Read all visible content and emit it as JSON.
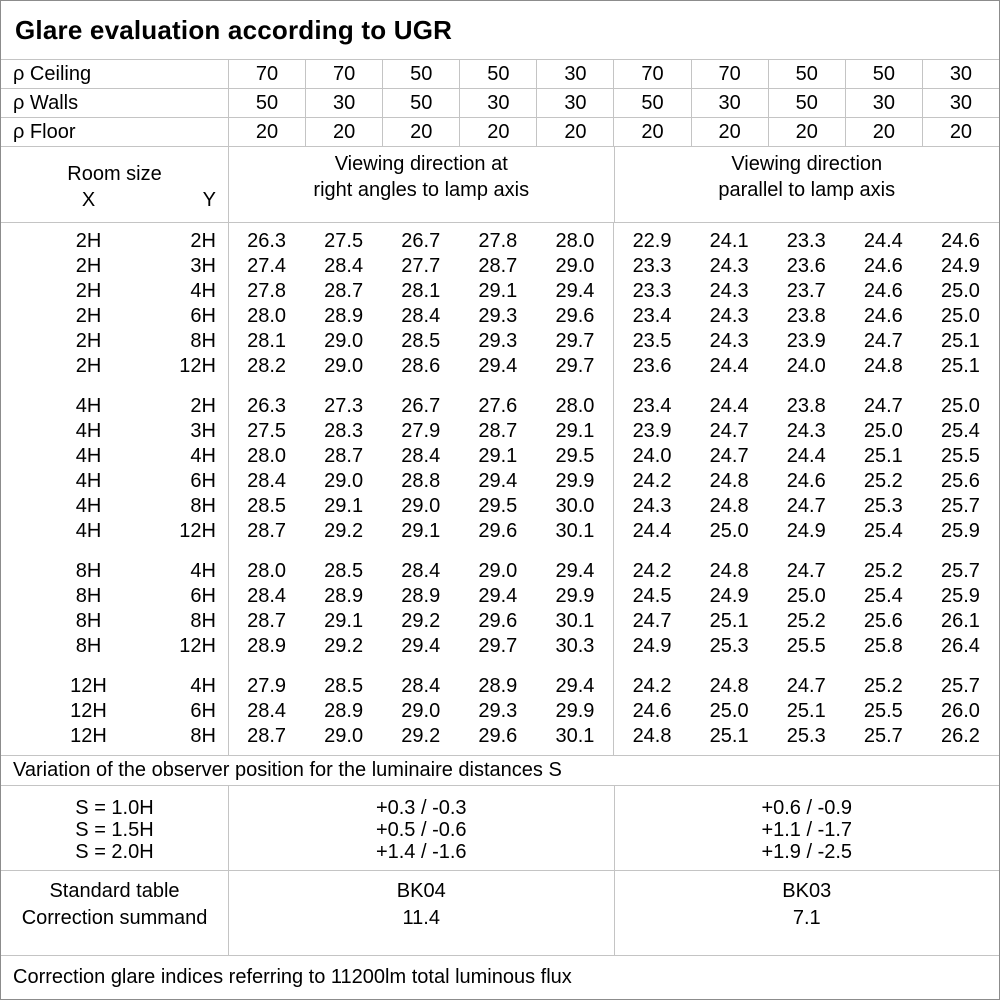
{
  "title": "Glare evaluation according to UGR",
  "reflectance": {
    "rows": [
      {
        "label": "ρ Ceiling",
        "values": [
          "70",
          "70",
          "50",
          "50",
          "30",
          "70",
          "70",
          "50",
          "50",
          "30"
        ]
      },
      {
        "label": "ρ Walls",
        "values": [
          "50",
          "30",
          "50",
          "30",
          "30",
          "50",
          "30",
          "50",
          "30",
          "30"
        ]
      },
      {
        "label": "ρ Floor",
        "values": [
          "20",
          "20",
          "20",
          "20",
          "20",
          "20",
          "20",
          "20",
          "20",
          "20"
        ]
      }
    ]
  },
  "room_size": {
    "title": "Room size",
    "x": "X",
    "y": "Y"
  },
  "viewing_groups": {
    "right_angles": "Viewing direction at\nright angles to lamp axis",
    "parallel": "Viewing direction\nparallel to lamp axis"
  },
  "blocks": [
    {
      "rows": [
        {
          "x": "2H",
          "y": "2H",
          "right": [
            "26.3",
            "27.5",
            "26.7",
            "27.8",
            "28.0"
          ],
          "parallel": [
            "22.9",
            "24.1",
            "23.3",
            "24.4",
            "24.6"
          ]
        },
        {
          "x": "2H",
          "y": "3H",
          "right": [
            "27.4",
            "28.4",
            "27.7",
            "28.7",
            "29.0"
          ],
          "parallel": [
            "23.3",
            "24.3",
            "23.6",
            "24.6",
            "24.9"
          ]
        },
        {
          "x": "2H",
          "y": "4H",
          "right": [
            "27.8",
            "28.7",
            "28.1",
            "29.1",
            "29.4"
          ],
          "parallel": [
            "23.3",
            "24.3",
            "23.7",
            "24.6",
            "25.0"
          ]
        },
        {
          "x": "2H",
          "y": "6H",
          "right": [
            "28.0",
            "28.9",
            "28.4",
            "29.3",
            "29.6"
          ],
          "parallel": [
            "23.4",
            "24.3",
            "23.8",
            "24.6",
            "25.0"
          ]
        },
        {
          "x": "2H",
          "y": "8H",
          "right": [
            "28.1",
            "29.0",
            "28.5",
            "29.3",
            "29.7"
          ],
          "parallel": [
            "23.5",
            "24.3",
            "23.9",
            "24.7",
            "25.1"
          ]
        },
        {
          "x": "2H",
          "y": "12H",
          "right": [
            "28.2",
            "29.0",
            "28.6",
            "29.4",
            "29.7"
          ],
          "parallel": [
            "23.6",
            "24.4",
            "24.0",
            "24.8",
            "25.1"
          ]
        }
      ]
    },
    {
      "rows": [
        {
          "x": "4H",
          "y": "2H",
          "right": [
            "26.3",
            "27.3",
            "26.7",
            "27.6",
            "28.0"
          ],
          "parallel": [
            "23.4",
            "24.4",
            "23.8",
            "24.7",
            "25.0"
          ]
        },
        {
          "x": "4H",
          "y": "3H",
          "right": [
            "27.5",
            "28.3",
            "27.9",
            "28.7",
            "29.1"
          ],
          "parallel": [
            "23.9",
            "24.7",
            "24.3",
            "25.0",
            "25.4"
          ]
        },
        {
          "x": "4H",
          "y": "4H",
          "right": [
            "28.0",
            "28.7",
            "28.4",
            "29.1",
            "29.5"
          ],
          "parallel": [
            "24.0",
            "24.7",
            "24.4",
            "25.1",
            "25.5"
          ]
        },
        {
          "x": "4H",
          "y": "6H",
          "right": [
            "28.4",
            "29.0",
            "28.8",
            "29.4",
            "29.9"
          ],
          "parallel": [
            "24.2",
            "24.8",
            "24.6",
            "25.2",
            "25.6"
          ]
        },
        {
          "x": "4H",
          "y": "8H",
          "right": [
            "28.5",
            "29.1",
            "29.0",
            "29.5",
            "30.0"
          ],
          "parallel": [
            "24.3",
            "24.8",
            "24.7",
            "25.3",
            "25.7"
          ]
        },
        {
          "x": "4H",
          "y": "12H",
          "right": [
            "28.7",
            "29.2",
            "29.1",
            "29.6",
            "30.1"
          ],
          "parallel": [
            "24.4",
            "25.0",
            "24.9",
            "25.4",
            "25.9"
          ]
        }
      ]
    },
    {
      "rows": [
        {
          "x": "8H",
          "y": "4H",
          "right": [
            "28.0",
            "28.5",
            "28.4",
            "29.0",
            "29.4"
          ],
          "parallel": [
            "24.2",
            "24.8",
            "24.7",
            "25.2",
            "25.7"
          ]
        },
        {
          "x": "8H",
          "y": "6H",
          "right": [
            "28.4",
            "28.9",
            "28.9",
            "29.4",
            "29.9"
          ],
          "parallel": [
            "24.5",
            "24.9",
            "25.0",
            "25.4",
            "25.9"
          ]
        },
        {
          "x": "8H",
          "y": "8H",
          "right": [
            "28.7",
            "29.1",
            "29.2",
            "29.6",
            "30.1"
          ],
          "parallel": [
            "24.7",
            "25.1",
            "25.2",
            "25.6",
            "26.1"
          ]
        },
        {
          "x": "8H",
          "y": "12H",
          "right": [
            "28.9",
            "29.2",
            "29.4",
            "29.7",
            "30.3"
          ],
          "parallel": [
            "24.9",
            "25.3",
            "25.5",
            "25.8",
            "26.4"
          ]
        }
      ]
    },
    {
      "rows": [
        {
          "x": "12H",
          "y": "4H",
          "right": [
            "27.9",
            "28.5",
            "28.4",
            "28.9",
            "29.4"
          ],
          "parallel": [
            "24.2",
            "24.8",
            "24.7",
            "25.2",
            "25.7"
          ]
        },
        {
          "x": "12H",
          "y": "6H",
          "right": [
            "28.4",
            "28.9",
            "29.0",
            "29.3",
            "29.9"
          ],
          "parallel": [
            "24.6",
            "25.0",
            "25.1",
            "25.5",
            "26.0"
          ]
        },
        {
          "x": "12H",
          "y": "8H",
          "right": [
            "28.7",
            "29.0",
            "29.2",
            "29.6",
            "30.1"
          ],
          "parallel": [
            "24.8",
            "25.1",
            "25.3",
            "25.7",
            "26.2"
          ]
        }
      ]
    }
  ],
  "variation_note": "Variation of the observer position for the luminaire distances S",
  "spacing_corrections": {
    "labels": [
      "S = 1.0H",
      "S = 1.5H",
      "S = 2.0H"
    ],
    "right_angles": [
      "+0.3 / -0.3",
      "+0.5 / -0.6",
      "+1.4 / -1.6"
    ],
    "parallel": [
      "+0.6 / -0.9",
      "+1.1 / -1.7",
      "+1.9 / -2.5"
    ]
  },
  "summary": {
    "labels": [
      "Standard table",
      "Correction summand"
    ],
    "right_angles": [
      "BK04",
      "11.4"
    ],
    "parallel": [
      "BK03",
      "7.1"
    ]
  },
  "footer_note": "Correction glare indices referring to 11200lm total luminous flux"
}
